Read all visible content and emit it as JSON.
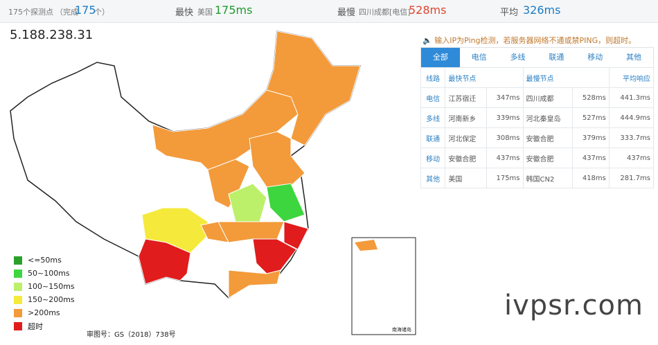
{
  "header": {
    "probe_count": "175个探测点",
    "done_prefix": "（完成",
    "done_count": "175",
    "done_suffix": "个）",
    "fastest_label": "最快",
    "fastest_location": "美国",
    "fastest_value": "175ms",
    "slowest_label": "最慢",
    "slowest_location": "四川成都[电信]",
    "slowest_value": "528ms",
    "average_label": "平均",
    "average_value": "326ms"
  },
  "ip": "5.188.238.31",
  "notice": "输入IP为Ping检测，若服务器网络不通或禁PING，则超时。",
  "tabs": [
    "全部",
    "电信",
    "多线",
    "联通",
    "移动",
    "其他"
  ],
  "table": {
    "columns": [
      "线路",
      "最快节点",
      "最慢节点",
      "平均响应"
    ],
    "rows": [
      [
        "电信",
        "江苏宿迁",
        "347ms",
        "四川成都",
        "528ms",
        "441.3ms"
      ],
      [
        "多线",
        "河南新乡",
        "339ms",
        "河北秦皇岛",
        "527ms",
        "444.9ms"
      ],
      [
        "联通",
        "河北保定",
        "308ms",
        "安徽合肥",
        "379ms",
        "333.7ms"
      ],
      [
        "移动",
        "安徽合肥",
        "437ms",
        "安徽合肥",
        "437ms",
        "437ms"
      ],
      [
        "其他",
        "美国",
        "175ms",
        "韩国CN2",
        "418ms",
        "281.7ms"
      ]
    ]
  },
  "legend": [
    {
      "label": "<=50ms",
      "color": "#2ca02c"
    },
    {
      "label": "50~100ms",
      "color": "#3ed63e"
    },
    {
      "label": "100~150ms",
      "color": "#bdf06a"
    },
    {
      "label": "150~200ms",
      "color": "#f5ea3c"
    },
    {
      "label": ">200ms",
      "color": "#f39a3a"
    },
    {
      "label": "超时",
      "color": "#e01c1c"
    }
  ],
  "map_approval": "审图号：GS（2018）738号",
  "inset_label": "南海诸岛",
  "watermark": "ivpsr.com"
}
